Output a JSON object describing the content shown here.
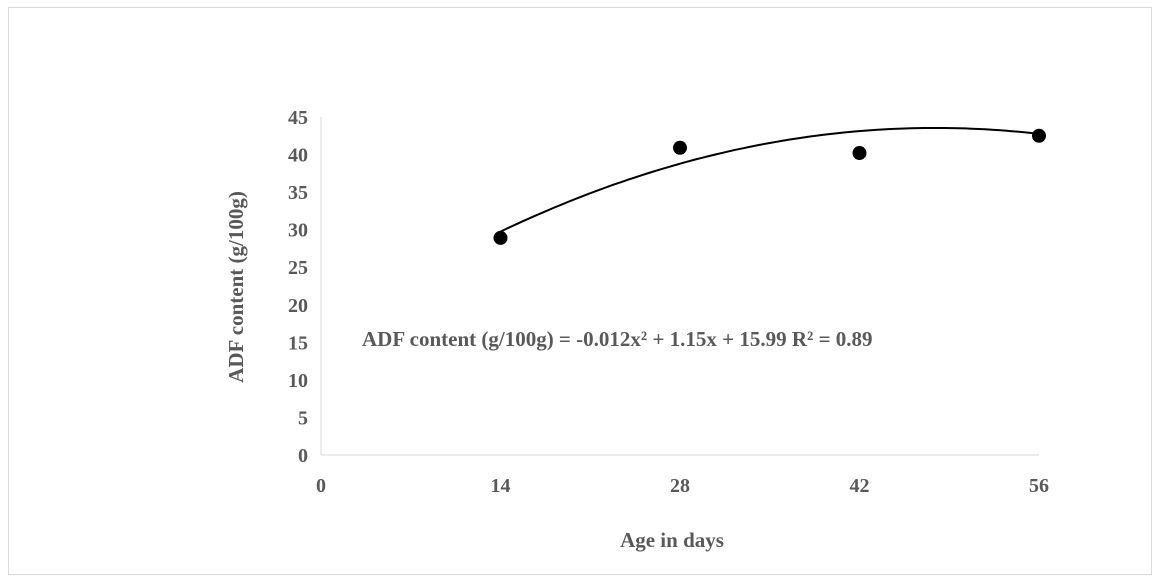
{
  "chart_data": {
    "type": "scatter",
    "title": "",
    "xlabel": "Age in days",
    "ylabel": "ADF content (g/100g)",
    "xlim": [
      0,
      56
    ],
    "ylim": [
      0,
      45
    ],
    "x_ticks": [
      "0",
      "14",
      "28",
      "42",
      "56"
    ],
    "y_ticks": [
      "0",
      "5",
      "10",
      "15",
      "20",
      "25",
      "30",
      "35",
      "40",
      "45"
    ],
    "grid": false,
    "legend": "none",
    "series": [
      {
        "x": [
          14,
          28,
          42,
          56
        ],
        "y": [
          28.9,
          40.9,
          40.2,
          42.5
        ],
        "color": "#000000"
      }
    ],
    "trendline": {
      "type": "polynomial",
      "order": 2,
      "coefficients": [
        -0.012,
        1.15,
        15.99
      ],
      "x_range": [
        14,
        56
      ],
      "color": "#000000"
    },
    "annotation": "ADF content (g/100g)  = -0.012x² + 1.15x + 15.99 R² = 0.89"
  }
}
